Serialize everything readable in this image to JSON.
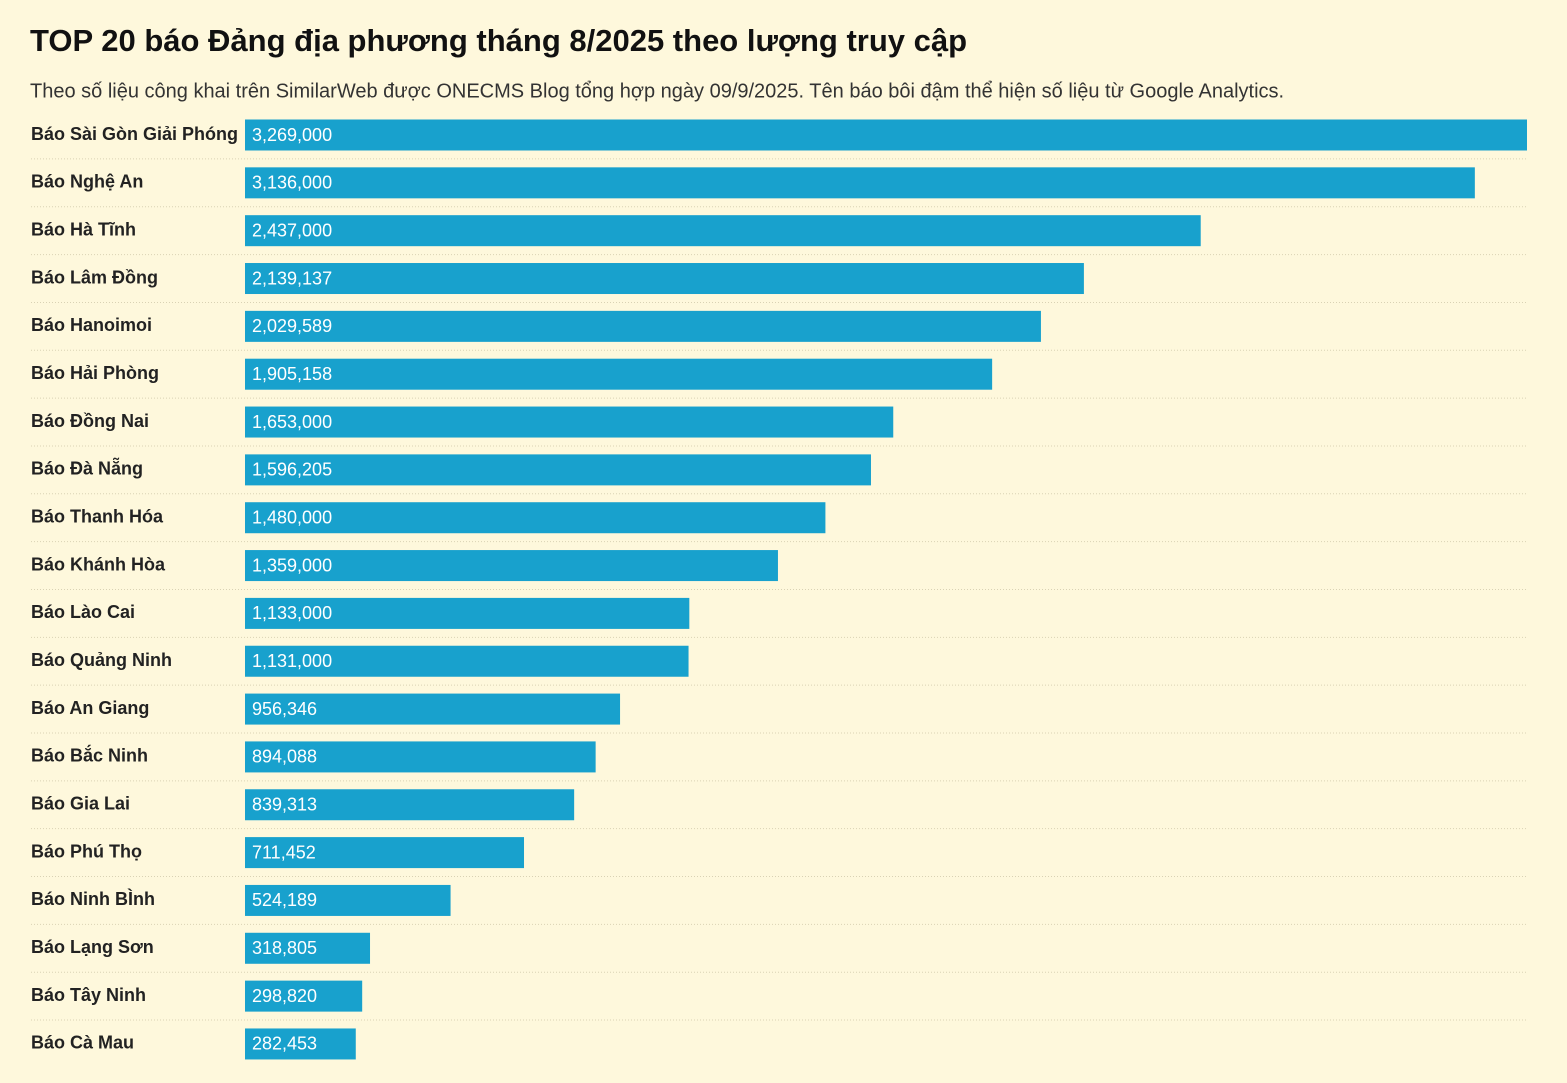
{
  "chart_data": {
    "type": "bar",
    "orientation": "horizontal",
    "title": "TOP 20 báo Đảng địa phương tháng 8/2025 theo lượng truy cập",
    "subtitle": "Theo số liệu công khai trên SimilarWeb được ONECMS Blog tổng hợp ngày 09/9/2025. Tên báo bôi đậm thể hiện số liệu từ Google Analytics.",
    "categories": [
      "Báo Sài Gòn Giải Phóng",
      "Báo Nghệ An",
      "Báo Hà Tĩnh",
      "Báo Lâm Đồng",
      "Báo Hanoimoi",
      "Báo Hải Phòng",
      "Báo Đồng Nai",
      "Báo Đà Nẵng",
      "Báo Thanh Hóa",
      "Báo Khánh Hòa",
      "Báo Lào Cai",
      "Báo Quảng Ninh",
      "Báo An Giang",
      "Báo Bắc Ninh",
      "Báo Gia Lai",
      "Báo Phú Thọ",
      "Báo Ninh BÌnh",
      "Báo Lạng Sơn",
      "Báo Tây Ninh",
      "Báo Cà Mau"
    ],
    "values": [
      3269000,
      3136000,
      2437000,
      2139137,
      2029589,
      1905158,
      1653000,
      1596205,
      1480000,
      1359000,
      1133000,
      1131000,
      956346,
      894088,
      839313,
      711452,
      524189,
      318805,
      298820,
      282453
    ],
    "value_labels": [
      "3,269,000",
      "3,136,000",
      "2,437,000",
      "2,139,137",
      "2,029,589",
      "1,905,158",
      "1,653,000",
      "1,596,205",
      "1,480,000",
      "1,359,000",
      "1,133,000",
      "1,131,000",
      "956,346",
      "894,088",
      "839,313",
      "711,452",
      "524,189",
      "318,805",
      "298,820",
      "282,453"
    ],
    "color": "#18a1cd"
  }
}
